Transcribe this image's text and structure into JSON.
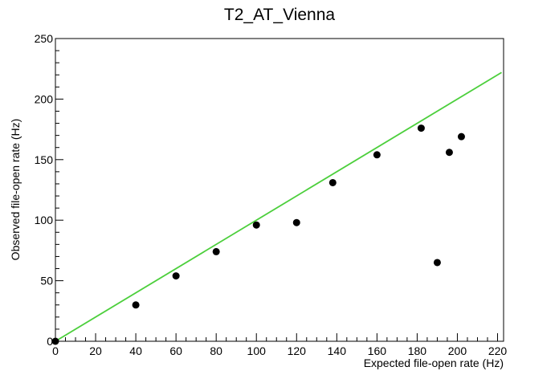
{
  "chart_data": {
    "type": "scatter",
    "title": "T2_AT_Vienna",
    "xlabel": "Expected file-open rate (Hz)",
    "ylabel": "Observed file-open rate (Hz)",
    "xlim": [
      0,
      223
    ],
    "ylim": [
      0,
      250
    ],
    "x_ticks": [
      0,
      20,
      40,
      60,
      80,
      100,
      120,
      140,
      160,
      180,
      200,
      220
    ],
    "y_ticks": [
      0,
      50,
      100,
      150,
      200,
      250
    ],
    "grid": false,
    "legend": "none",
    "series": [
      {
        "type": "scatter",
        "color": "#000000",
        "points": [
          {
            "x": 0,
            "y": 0
          },
          {
            "x": 40,
            "y": 30
          },
          {
            "x": 60,
            "y": 54
          },
          {
            "x": 80,
            "y": 74
          },
          {
            "x": 100,
            "y": 96
          },
          {
            "x": 120,
            "y": 98
          },
          {
            "x": 138,
            "y": 131
          },
          {
            "x": 160,
            "y": 154
          },
          {
            "x": 182,
            "y": 176
          },
          {
            "x": 190,
            "y": 65
          },
          {
            "x": 196,
            "y": 156
          },
          {
            "x": 202,
            "y": 169
          }
        ]
      },
      {
        "type": "line",
        "color": "#4ccf3c",
        "points": [
          {
            "x": 0,
            "y": 0
          },
          {
            "x": 222,
            "y": 222
          }
        ]
      }
    ]
  }
}
